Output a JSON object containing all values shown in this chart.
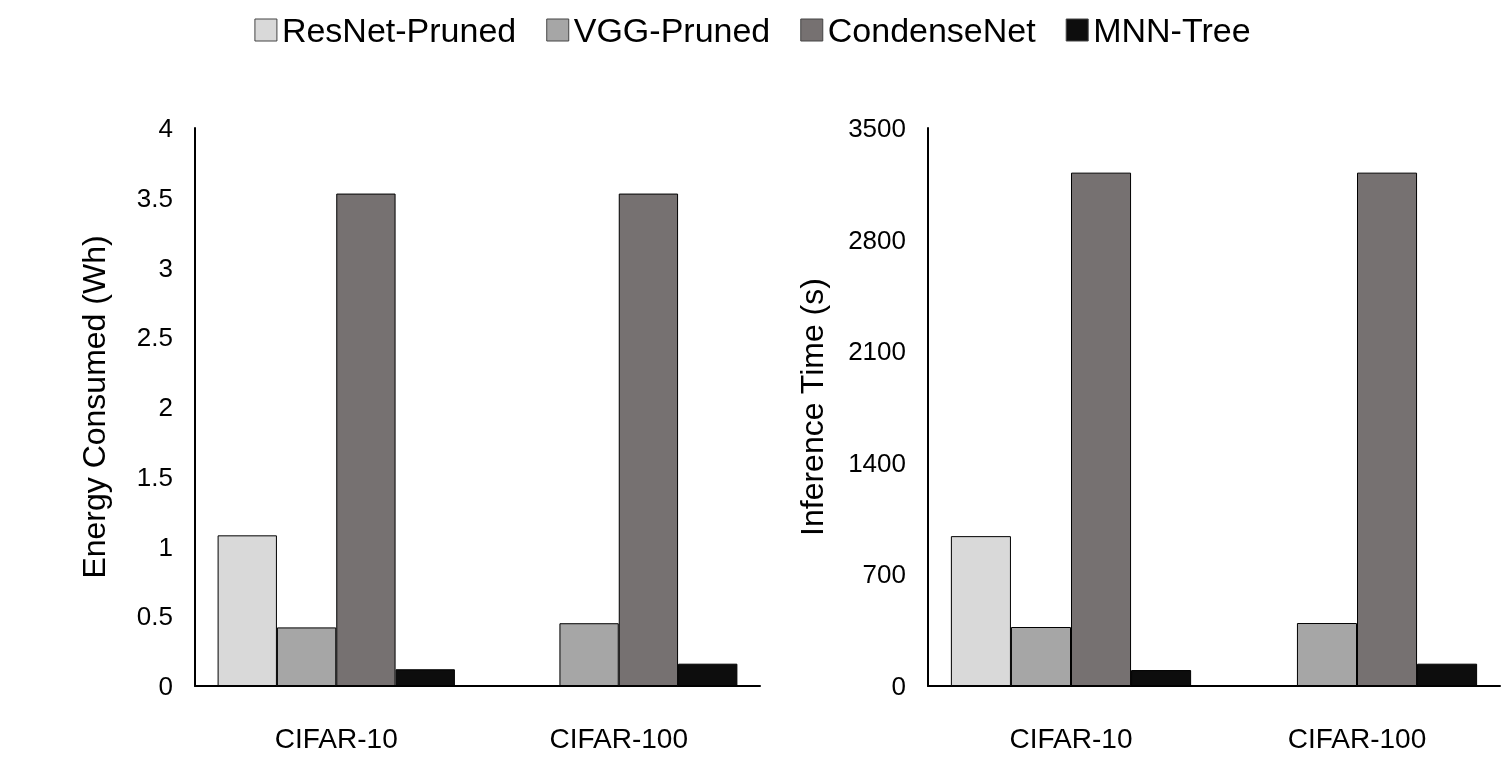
{
  "chart_data": [
    {
      "type": "bar",
      "ylabel": "Energy Consumed (Wh)",
      "categories": [
        "CIFAR-10",
        "CIFAR-100"
      ],
      "series": [
        {
          "name": "ResNet-Pruned",
          "color": "#d9d9d9",
          "values": [
            1.08,
            null
          ]
        },
        {
          "name": "VGG-Pruned",
          "color": "#a6a6a6",
          "values": [
            0.42,
            0.45
          ]
        },
        {
          "name": "CondenseNet",
          "color": "#767171",
          "values": [
            3.53,
            3.53
          ]
        },
        {
          "name": "MNN-Tree",
          "color": "#0d0d0d",
          "values": [
            0.12,
            0.16
          ]
        }
      ],
      "ylim": [
        0,
        4
      ],
      "yticks": [
        0,
        0.5,
        1,
        1.5,
        2,
        2.5,
        3,
        3.5,
        4
      ],
      "grid": false,
      "legend": "top"
    },
    {
      "type": "bar",
      "ylabel": "Inference Time (s)",
      "categories": [
        "CIFAR-10",
        "CIFAR-100"
      ],
      "series": [
        {
          "color": "#d9d9d9",
          "values": [
            940,
            null
          ]
        },
        {
          "color": "#a6a6a6",
          "values": [
            370,
            395
          ]
        },
        {
          "color": "#767171",
          "values": [
            3220,
            3220
          ]
        },
        {
          "color": "#0d0d0d",
          "values": [
            100,
            140
          ]
        }
      ],
      "ylim": [
        0,
        3500
      ],
      "yticks": [
        0,
        700,
        1400,
        2100,
        2800,
        3500
      ],
      "grid": false,
      "legend": false
    }
  ]
}
